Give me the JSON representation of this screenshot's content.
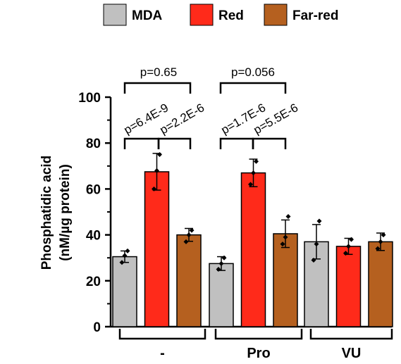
{
  "chart_data": {
    "type": "bar",
    "ylabel_line1": "Phosphatidic acid",
    "ylabel_line2": "(nM/µg protein)",
    "ylim": [
      0,
      100
    ],
    "yticks": [
      "0",
      "20",
      "40",
      "60",
      "80",
      "100"
    ],
    "groups": [
      "-",
      "Pro",
      "VU"
    ],
    "legend_position": "top",
    "series": [
      {
        "name": "MDA",
        "color": "#c0c0c0",
        "values": [
          30.5,
          27.5,
          37
        ],
        "errors": [
          2.5,
          3,
          7.5
        ],
        "points": [
          [
            28,
            31,
            33
          ],
          [
            25,
            27.5,
            30
          ],
          [
            29,
            36,
            46
          ]
        ]
      },
      {
        "name": "Red",
        "color": "#ff2a1a",
        "values": [
          67.5,
          67,
          35
        ],
        "errors": [
          8,
          6,
          3.5
        ],
        "points": [
          [
            60,
            68,
            75
          ],
          [
            62,
            67,
            72
          ],
          [
            32,
            35,
            38
          ]
        ]
      },
      {
        "name": "Far-red",
        "color": "#b5601f",
        "values": [
          40,
          40.5,
          37
        ],
        "errors": [
          2.8,
          6,
          3.8
        ],
        "points": [
          [
            37,
            40,
            42
          ],
          [
            36,
            39,
            48
          ],
          [
            34,
            37,
            40
          ]
        ]
      }
    ],
    "annotations": [
      {
        "text": "p=0.65"
      },
      {
        "text": "p=6.4E-9"
      },
      {
        "text": "p=2.2E-6"
      },
      {
        "text": "p=0.056"
      },
      {
        "text": "p=1.7E-6"
      },
      {
        "text": "p=5.5E-6"
      }
    ]
  }
}
